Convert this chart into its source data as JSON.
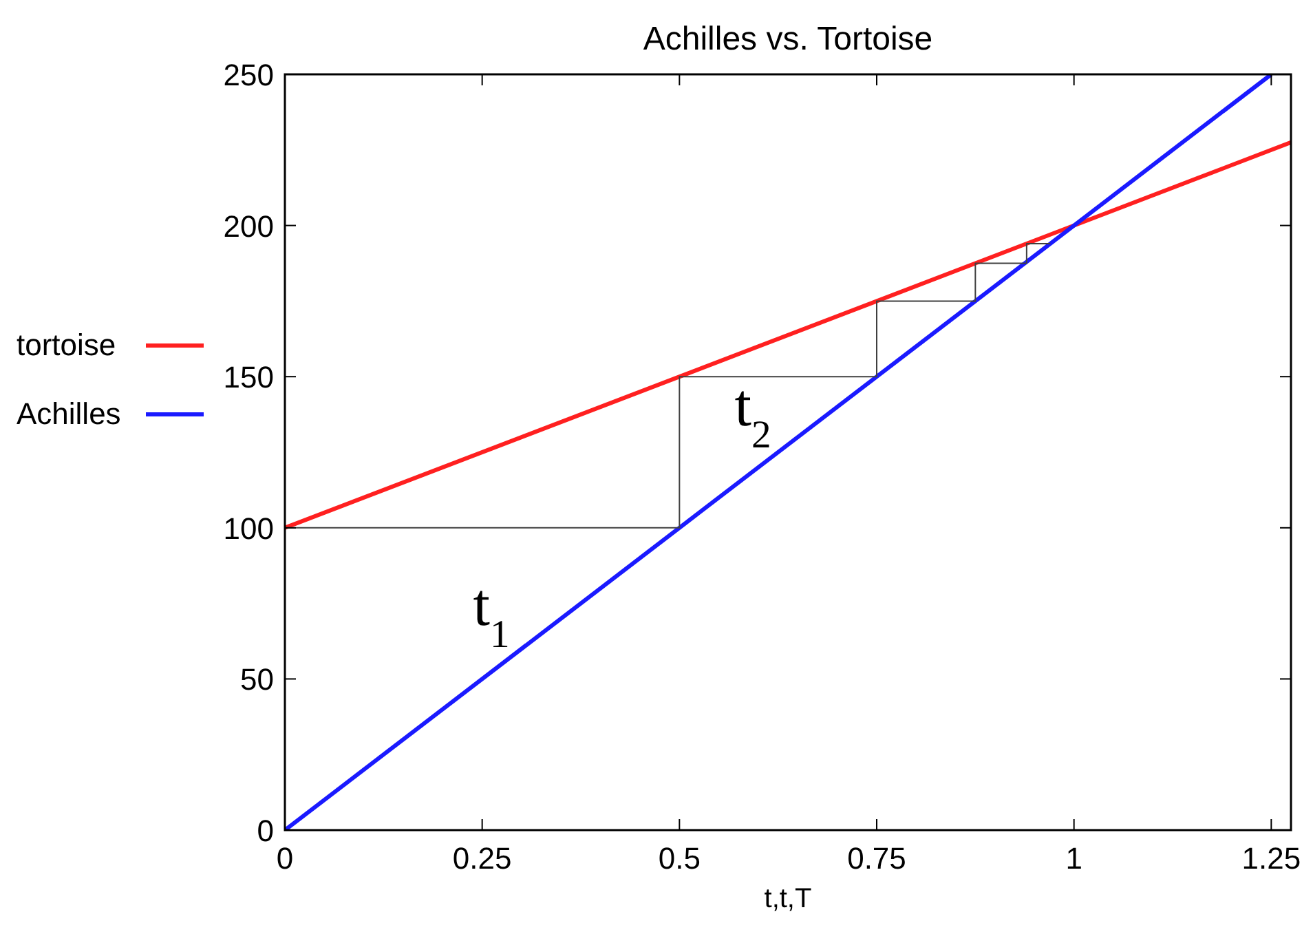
{
  "chart_data": {
    "type": "line",
    "title": "Achilles vs. Tortoise",
    "xlabel": "t,t,T",
    "xlim": [
      0,
      1.275
    ],
    "xticks": [
      0,
      0.25,
      0.5,
      0.75,
      1,
      1.25
    ],
    "ylim": [
      0,
      250
    ],
    "yticks": [
      0,
      50,
      100,
      150,
      200,
      250
    ],
    "grid": false,
    "legend": "left",
    "marker": "none",
    "line_style": "solid",
    "series": [
      {
        "name": "tortoise",
        "color": "#ff2020",
        "x": [
          0,
          1.275
        ],
        "values": [
          100,
          227.5
        ]
      },
      {
        "name": "Achilles",
        "color": "#1a1aff",
        "x": [
          0,
          1.25
        ],
        "values": [
          0,
          250
        ]
      },
      {
        "color": "#404040",
        "x": [
          0,
          0.5,
          0.5,
          0.75,
          0.75,
          0.875,
          0.875,
          0.94,
          0.94,
          0.97
        ],
        "values": [
          100,
          100,
          150,
          150,
          175,
          175,
          187.5,
          187.5,
          194,
          194
        ]
      }
    ],
    "annotations": [
      "t$_{1}$",
      "t$_{2}$"
    ]
  }
}
